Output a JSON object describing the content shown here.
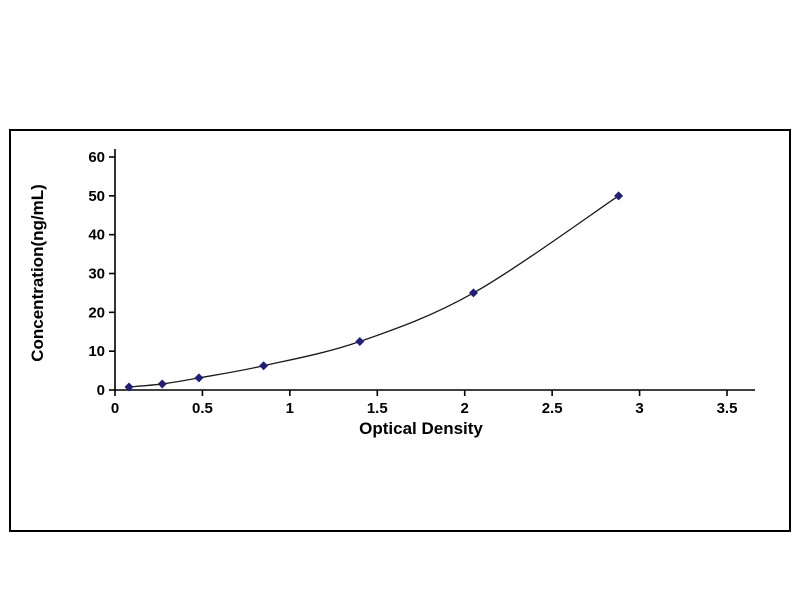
{
  "page": {
    "background_color": "#ffffff",
    "panel_border_color": "#000000"
  },
  "chart_data": {
    "type": "line",
    "title": "",
    "xlabel": "Optical Density",
    "ylabel": "Concentration(ng/mL)",
    "x": [
      0.08,
      0.27,
      0.48,
      0.85,
      1.4,
      2.05,
      2.88
    ],
    "y": [
      0.78,
      1.56,
      3.12,
      6.25,
      12.5,
      25,
      50
    ],
    "xlim": [
      0,
      3.66
    ],
    "ylim": [
      0,
      60
    ],
    "x_ticks": [
      0,
      0.5,
      1,
      1.5,
      2,
      2.5,
      3,
      3.5
    ],
    "y_ticks": [
      0,
      10,
      20,
      30,
      40,
      50,
      60
    ],
    "grid": false,
    "legend": null,
    "marker": "diamond",
    "marker_color": "#1e1e7e",
    "line_color": "#1a1a1a",
    "axis_color": "#000000",
    "tick_label_color": "#000000"
  }
}
